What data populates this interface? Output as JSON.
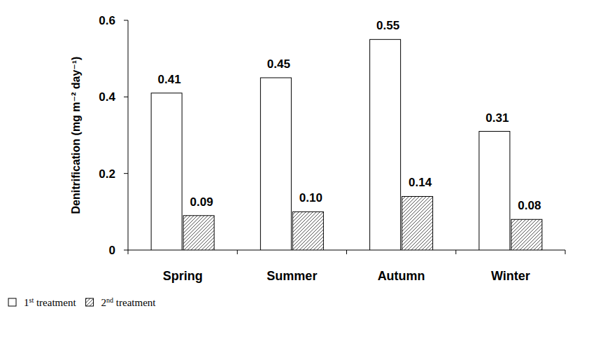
{
  "chart_data": {
    "type": "bar",
    "categories": [
      "Spring",
      "Summer",
      "Autumn",
      "Winter"
    ],
    "y_label": "Denitrification (mg m⁻² day⁻¹)",
    "series": [
      {
        "name": "1st treatment",
        "color": "#ffffff",
        "values": [
          0.41,
          0.45,
          0.55,
          0.31
        ]
      },
      {
        "name": "2nd treatment",
        "color": "hatch",
        "values": [
          0.09,
          0.1,
          0.14,
          0.08
        ],
        "value_labels": [
          "0.09",
          "0.10",
          "0.14",
          "0.08"
        ]
      }
    ],
    "ylim": [
      0,
      0.6
    ],
    "yticks": [
      0,
      0.2,
      0.4,
      0.6
    ],
    "grid": false,
    "data_labels": true
  }
}
